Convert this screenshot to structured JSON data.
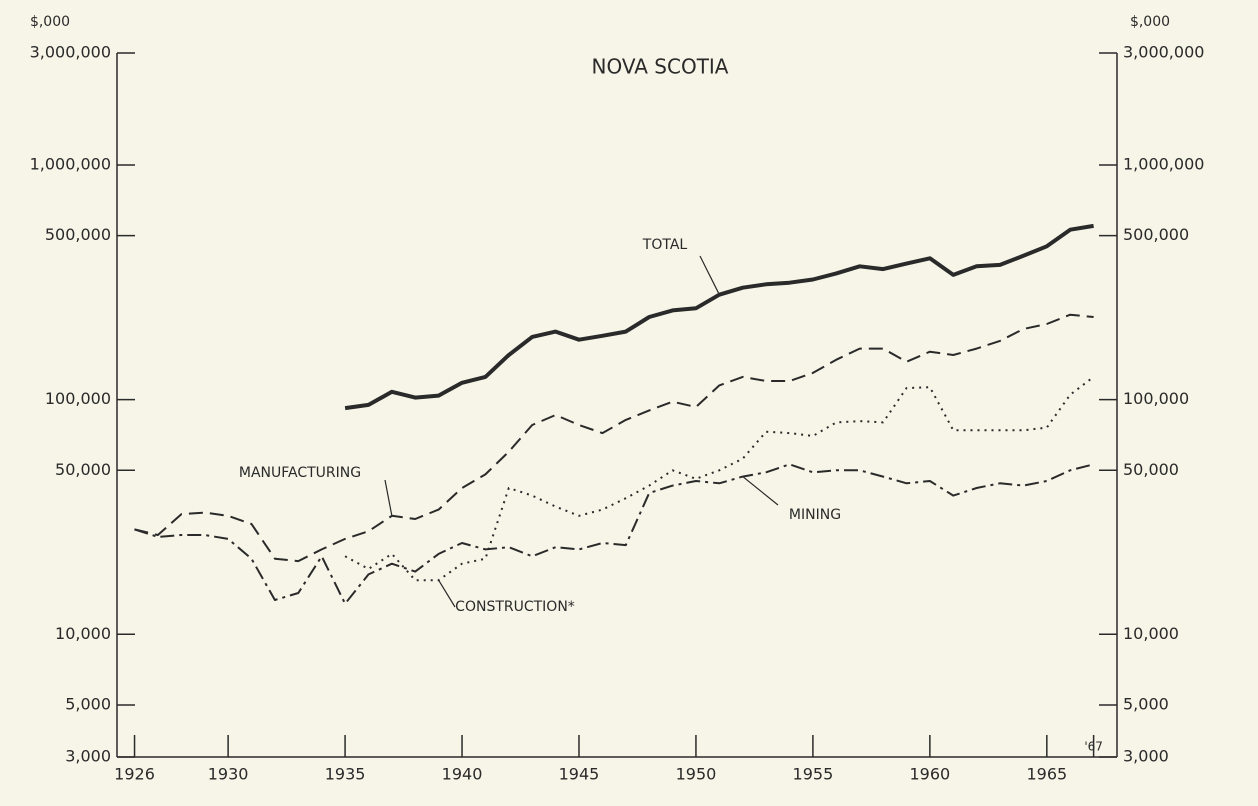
{
  "chart_data": {
    "type": "line",
    "title": "NOVA SCOTIA",
    "y_label": "$,000",
    "log_scale": true,
    "x": [
      1926,
      1927,
      1928,
      1929,
      1930,
      1931,
      1932,
      1933,
      1934,
      1935,
      1936,
      1937,
      1938,
      1939,
      1940,
      1941,
      1942,
      1943,
      1944,
      1945,
      1946,
      1947,
      1948,
      1949,
      1950,
      1951,
      1952,
      1953,
      1954,
      1955,
      1956,
      1957,
      1958,
      1959,
      1960,
      1961,
      1962,
      1963,
      1964,
      1965,
      1966,
      1967
    ],
    "xlim": [
      1925.25,
      1968
    ],
    "xticks": [
      1926,
      1930,
      1935,
      1940,
      1945,
      1950,
      1955,
      1960,
      1965,
      {
        "value": 1967,
        "label": "'67"
      }
    ],
    "ylim": [
      3000,
      3000000
    ],
    "yticks": [
      {
        "value": 3000,
        "label": "3,000"
      },
      {
        "value": 5000,
        "label": "5,000"
      },
      {
        "value": 10000,
        "label": "10,000"
      },
      {
        "value": 50000,
        "label": "50,000"
      },
      {
        "value": 100000,
        "label": "100,000"
      },
      {
        "value": 500000,
        "label": "500,000"
      },
      {
        "value": 1000000,
        "label": "1,000,000"
      },
      {
        "value": 3000000,
        "label": "3,000,000"
      }
    ],
    "series": [
      {
        "name": "TOTAL",
        "color": "#2a2a2a",
        "values": [
          null,
          null,
          null,
          null,
          null,
          null,
          null,
          null,
          null,
          92000,
          95000,
          108000,
          102000,
          104000,
          118000,
          125000,
          155000,
          185000,
          195000,
          180000,
          187000,
          195000,
          225000,
          240000,
          245000,
          280000,
          300000,
          310000,
          315000,
          325000,
          345000,
          370000,
          360000,
          380000,
          400000,
          340000,
          370000,
          375000,
          410000,
          450000,
          530000,
          550000
        ]
      },
      {
        "name": "MANUFACTURING",
        "color": "#2a2a2a",
        "values": [
          28000,
          26500,
          32500,
          33000,
          32000,
          29500,
          21000,
          20500,
          23000,
          25500,
          27500,
          32000,
          31000,
          34000,
          42000,
          48000,
          60000,
          78000,
          86000,
          78000,
          72000,
          82000,
          90000,
          98000,
          93000,
          115000,
          125000,
          120000,
          120000,
          130000,
          148000,
          165000,
          165000,
          145000,
          160000,
          155000,
          165000,
          178000,
          200000,
          210000,
          230000,
          225000
        ]
      },
      {
        "name": "MINING",
        "color": "#2a2a2a",
        "values": [
          28000,
          26000,
          26500,
          26500,
          25500,
          21000,
          14000,
          15000,
          21500,
          13500,
          18000,
          20000,
          18500,
          22000,
          24500,
          23000,
          23500,
          21500,
          23500,
          23000,
          24500,
          24000,
          40000,
          43000,
          45000,
          44000,
          47000,
          49000,
          53000,
          49000,
          50000,
          50000,
          47000,
          44000,
          45000,
          39000,
          42000,
          44000,
          43000,
          45000,
          50000,
          53000
        ]
      },
      {
        "name": "CONSTRUCTION*",
        "color": "#2a2a2a",
        "values": [
          null,
          null,
          null,
          null,
          null,
          null,
          null,
          null,
          null,
          21500,
          19000,
          22000,
          17000,
          17000,
          20000,
          21000,
          42000,
          39000,
          35000,
          32000,
          34000,
          38000,
          43000,
          50000,
          46000,
          50000,
          56000,
          73000,
          72000,
          70000,
          80000,
          81000,
          80000,
          112000,
          113000,
          74000,
          74000,
          74000,
          74000,
          76000,
          105000,
          125000
        ]
      }
    ]
  }
}
